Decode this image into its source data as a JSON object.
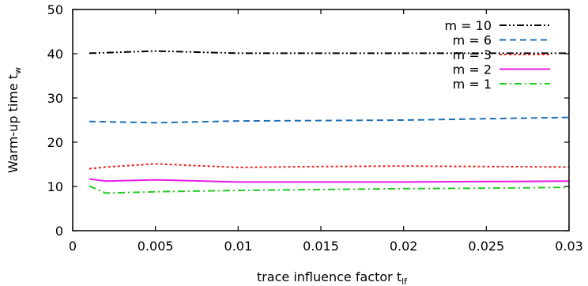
{
  "chart_data": {
    "type": "line",
    "xlabel": {
      "main": "trace influence factor t",
      "sub": "lf"
    },
    "ylabel": {
      "main": "Warm-up time t",
      "sub": "w"
    },
    "xlim": [
      0,
      0.03
    ],
    "ylim": [
      0,
      50
    ],
    "xticks": [
      "0",
      "0.005",
      "0.01",
      "0.015",
      "0.02",
      "0.025",
      "0.03"
    ],
    "yticks": [
      "0",
      "10",
      "20",
      "30",
      "40",
      "50"
    ],
    "grid": false,
    "legend_position": "top-right",
    "series": [
      {
        "name": "m = 10",
        "color": "#000000",
        "dash": "dash-dot-dot",
        "points": [
          [
            0.001,
            40.1
          ],
          [
            0.005,
            40.6
          ],
          [
            0.01,
            40.1
          ],
          [
            0.015,
            40.1
          ],
          [
            0.02,
            40.1
          ],
          [
            0.025,
            40.1
          ],
          [
            0.03,
            40.1
          ]
        ]
      },
      {
        "name": "m = 6",
        "color": "#1f6fb4",
        "dash": "dashed",
        "points": [
          [
            0.001,
            24.7
          ],
          [
            0.005,
            24.4
          ],
          [
            0.01,
            24.8
          ],
          [
            0.015,
            24.9
          ],
          [
            0.02,
            25.0
          ],
          [
            0.025,
            25.3
          ],
          [
            0.03,
            25.6
          ]
        ]
      },
      {
        "name": "m = 3",
        "color": "#e8201a",
        "dash": "dotted",
        "points": [
          [
            0.001,
            14.0
          ],
          [
            0.002,
            14.4
          ],
          [
            0.005,
            15.1
          ],
          [
            0.01,
            14.3
          ],
          [
            0.015,
            14.5
          ],
          [
            0.02,
            14.6
          ],
          [
            0.025,
            14.5
          ],
          [
            0.03,
            14.4
          ]
        ]
      },
      {
        "name": "m = 2",
        "color": "#e81ce8",
        "dash": "solid",
        "points": [
          [
            0.001,
            11.7
          ],
          [
            0.002,
            11.2
          ],
          [
            0.005,
            11.5
          ],
          [
            0.01,
            11.0
          ],
          [
            0.015,
            11.0
          ],
          [
            0.02,
            11.0
          ],
          [
            0.025,
            11.1
          ],
          [
            0.03,
            11.2
          ]
        ]
      },
      {
        "name": "m = 1",
        "color": "#22cc22",
        "dash": "dash-dot",
        "points": [
          [
            0.001,
            10.1
          ],
          [
            0.002,
            8.5
          ],
          [
            0.005,
            8.8
          ],
          [
            0.01,
            9.1
          ],
          [
            0.015,
            9.3
          ],
          [
            0.02,
            9.5
          ],
          [
            0.025,
            9.6
          ],
          [
            0.03,
            9.8
          ]
        ]
      }
    ]
  }
}
